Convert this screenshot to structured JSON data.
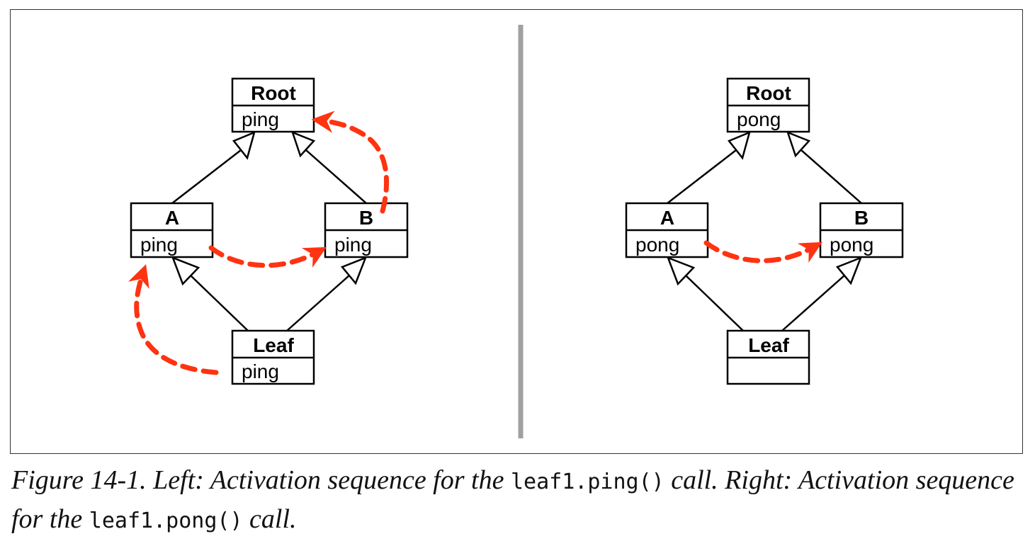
{
  "left_panel": {
    "root": {
      "title": "Root",
      "method": "ping"
    },
    "a": {
      "title": "A",
      "method": "ping"
    },
    "b": {
      "title": "B",
      "method": "ping"
    },
    "leaf": {
      "title": "Leaf",
      "method": "ping"
    }
  },
  "right_panel": {
    "root": {
      "title": "Root",
      "method": "pong"
    },
    "a": {
      "title": "A",
      "method": "pong"
    },
    "b": {
      "title": "B",
      "method": "pong"
    },
    "leaf": {
      "title": "Leaf",
      "method": ""
    }
  },
  "colors": {
    "activation_arrow": "#ff3311",
    "divider": "#a0a0a0",
    "line": "#000000"
  },
  "caption": {
    "part1": "Figure 14-1. Left: Activation sequence for the ",
    "code1": "leaf1.ping()",
    "part2": " call. Right: Activation sequence for the ",
    "code2": "leaf1.pong()",
    "part3": " call."
  }
}
